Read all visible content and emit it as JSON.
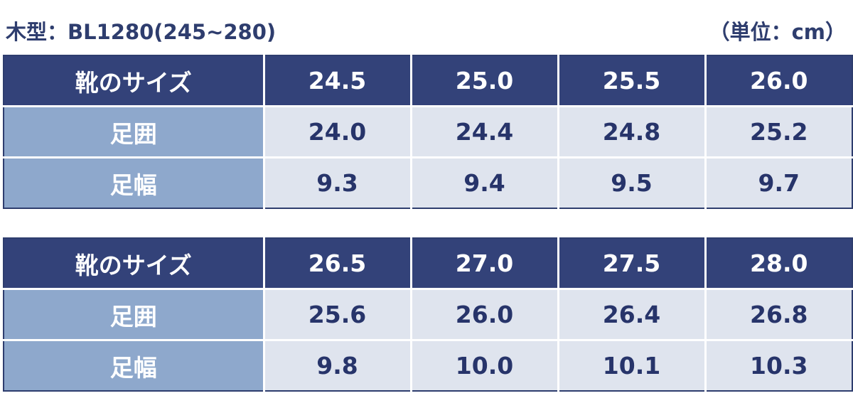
{
  "header": {
    "title": "木型：BL1280(245~280)",
    "unit": "（単位：cm）"
  },
  "tables": [
    {
      "header_label": "靴のサイズ",
      "sizes": [
        "24.5",
        "25.0",
        "25.5",
        "26.0"
      ],
      "rows": [
        {
          "label": "足囲",
          "values": [
            "24.0",
            "24.4",
            "24.8",
            "25.2"
          ]
        },
        {
          "label": "足幅",
          "values": [
            "9.3",
            "9.4",
            "9.5",
            "9.7"
          ]
        }
      ]
    },
    {
      "header_label": "靴のサイズ",
      "sizes": [
        "26.5",
        "27.0",
        "27.5",
        "28.0"
      ],
      "rows": [
        {
          "label": "足囲",
          "values": [
            "25.6",
            "26.0",
            "26.4",
            "26.8"
          ]
        },
        {
          "label": "足幅",
          "values": [
            "9.8",
            "10.0",
            "10.1",
            "10.3"
          ]
        }
      ]
    }
  ],
  "colors": {
    "header_bg": "#334279",
    "label_bg": "#8ea8cc",
    "cell_bg": "#dfe4ee",
    "text": "#27346a"
  }
}
